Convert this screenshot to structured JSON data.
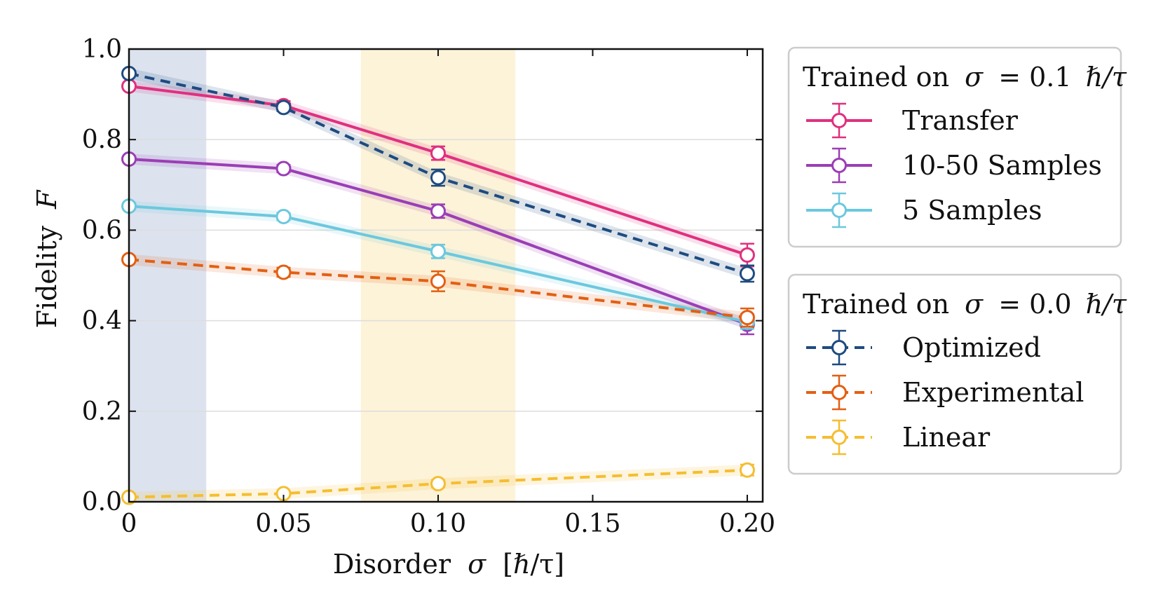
{
  "chart_data": {
    "type": "line",
    "xlabel_prefix": "Disorder",
    "xlabel_symbol": "σ",
    "xlabel_unit": "[ℏ/τ]",
    "ylabel_prefix": "Fidelity",
    "ylabel_symbol": "F",
    "xlim": [
      0,
      0.205
    ],
    "ylim": [
      0,
      1.0
    ],
    "x_ticks": [
      0,
      0.05,
      0.1,
      0.15,
      0.2
    ],
    "x_tick_labels": [
      "0",
      "0.05",
      "0.10",
      "0.15",
      "0.20"
    ],
    "y_ticks": [
      0.0,
      0.2,
      0.4,
      0.6,
      0.8,
      1.0
    ],
    "y_tick_labels": [
      "0.0",
      "0.2",
      "0.4",
      "0.6",
      "0.8",
      "1.0"
    ],
    "grid": "horizontal",
    "shaded_regions": [
      {
        "name": "train-region-0",
        "x0": 0,
        "x1": 0.025,
        "color": "#dce3ef"
      },
      {
        "name": "train-region-0.1",
        "x0": 0.075,
        "x1": 0.125,
        "color": "#fdf3d9"
      }
    ],
    "legend_groups": [
      {
        "title_prefix": "Trained on",
        "title_symbol": "σ",
        "title_rest": "= 0.1",
        "title_unit": "ℏ/τ",
        "series": [
          "Transfer",
          "10-50 Samples",
          "5 Samples"
        ]
      },
      {
        "title_prefix": "Trained on",
        "title_symbol": "σ",
        "title_rest": "= 0.0",
        "title_unit": "ℏ/τ",
        "series": [
          "Optimized",
          "Experimental",
          "Linear"
        ]
      }
    ],
    "series": [
      {
        "name": "Transfer",
        "color": "#e0307f",
        "dash": "solid",
        "x": [
          0,
          0.05,
          0.1,
          0.2
        ],
        "y": [
          0.918,
          0.875,
          0.77,
          0.545
        ],
        "err": [
          0.005,
          0.01,
          0.015,
          0.025
        ]
      },
      {
        "name": "10-50 Samples",
        "color": "#9b3eb5",
        "dash": "solid",
        "x": [
          0,
          0.05,
          0.1,
          0.2
        ],
        "y": [
          0.757,
          0.736,
          0.642,
          0.392
        ],
        "err": [
          0.005,
          0.008,
          0.015,
          0.022
        ]
      },
      {
        "name": "5 Samples",
        "color": "#6cc8dd",
        "dash": "solid",
        "x": [
          0,
          0.05,
          0.1,
          0.2
        ],
        "y": [
          0.653,
          0.63,
          0.553,
          0.397
        ],
        "err": [
          0.005,
          0.008,
          0.015,
          0.015
        ]
      },
      {
        "name": "Optimized",
        "color": "#1d4b80",
        "dash": "dashed",
        "x": [
          0,
          0.05,
          0.1,
          0.2
        ],
        "y": [
          0.946,
          0.871,
          0.716,
          0.504
        ],
        "err": [
          0.005,
          0.008,
          0.018,
          0.018
        ]
      },
      {
        "name": "Experimental",
        "color": "#e35f12",
        "dash": "dashed",
        "x": [
          0,
          0.05,
          0.1,
          0.2
        ],
        "y": [
          0.535,
          0.507,
          0.487,
          0.407
        ],
        "err": [
          0.005,
          0.01,
          0.022,
          0.02
        ]
      },
      {
        "name": "Linear",
        "color": "#f5be30",
        "dash": "dashed",
        "x": [
          0,
          0.05,
          0.1,
          0.2
        ],
        "y": [
          0.01,
          0.018,
          0.04,
          0.07
        ],
        "err": [
          0.005,
          0.005,
          0.008,
          0.012
        ]
      }
    ]
  }
}
